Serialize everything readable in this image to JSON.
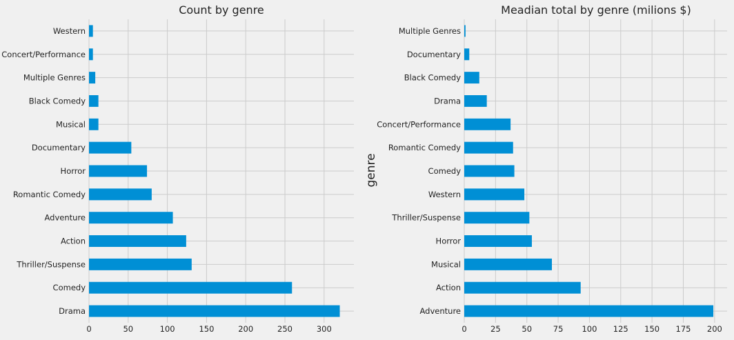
{
  "colors": {
    "bar": "#008fd5",
    "background": "#f0f0f0",
    "grid": "#cbcbcb"
  },
  "chart_data": [
    {
      "type": "bar",
      "orientation": "horizontal",
      "title": "Count by genre",
      "xlabel": "",
      "ylabel": "",
      "categories": [
        "Western",
        "Concert/Performance",
        "Multiple Genres",
        "Black Comedy",
        "Musical",
        "Documentary",
        "Horror",
        "Romantic Comedy",
        "Adventure",
        "Action",
        "Thriller/Suspense",
        "Comedy",
        "Drama"
      ],
      "values": [
        5,
        5,
        8,
        12,
        12,
        54,
        74,
        80,
        107,
        124,
        131,
        259,
        320
      ],
      "xlim": [
        0,
        338
      ],
      "xticks": [
        0,
        50,
        100,
        150,
        200,
        250,
        300
      ],
      "grid": true
    },
    {
      "type": "bar",
      "orientation": "horizontal",
      "title": "Meadian total by genre (milions $)",
      "xlabel": "",
      "ylabel": "genre",
      "categories": [
        "Multiple Genres",
        "Documentary",
        "Black Comedy",
        "Drama",
        "Concert/Performance",
        "Romantic Comedy",
        "Comedy",
        "Western",
        "Thriller/Suspense",
        "Horror",
        "Musical",
        "Action",
        "Adventure"
      ],
      "values": [
        1,
        4,
        12,
        18,
        37,
        39,
        40,
        48,
        52,
        54,
        70,
        93,
        199
      ],
      "xlim": [
        0,
        210
      ],
      "xticks": [
        0,
        25,
        50,
        75,
        100,
        125,
        150,
        175,
        200
      ],
      "grid": true
    }
  ]
}
